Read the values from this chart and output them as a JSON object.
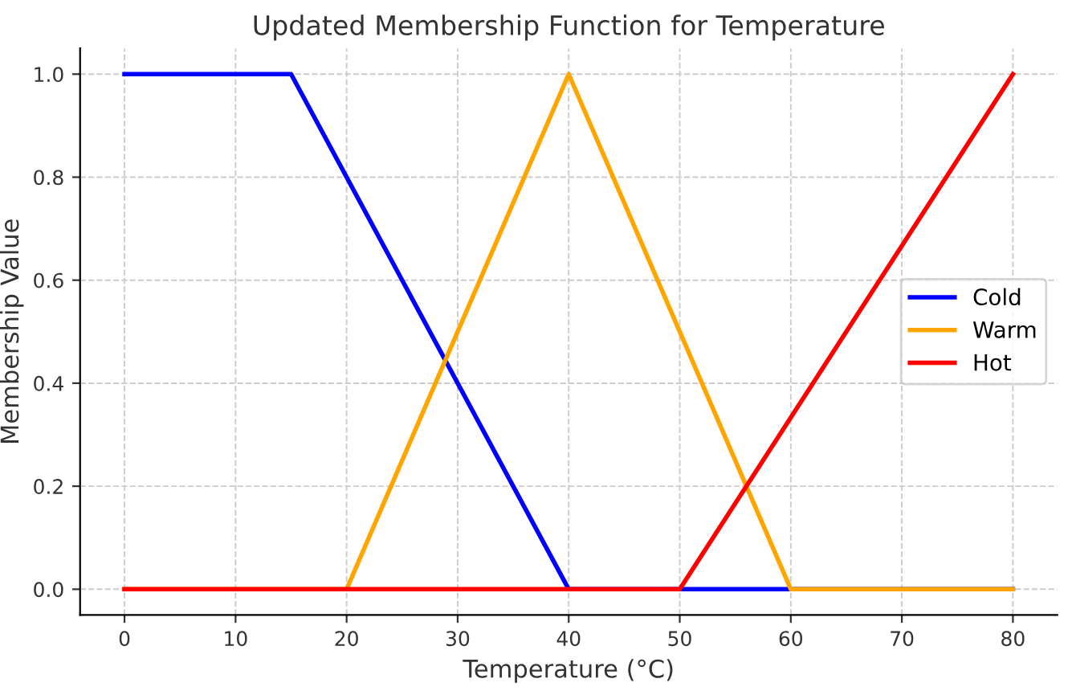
{
  "chart_data": {
    "type": "line",
    "title": "Updated Membership Function for Temperature",
    "xlabel": "Temperature (°C)",
    "ylabel": "Membership Value",
    "series": [
      {
        "name": "Cold",
        "color": "#0000ff",
        "x": [
          0,
          15,
          40,
          80
        ],
        "values": [
          1,
          1,
          0,
          0
        ]
      },
      {
        "name": "Warm",
        "color": "#ffa500",
        "x": [
          0,
          20,
          40,
          60,
          80
        ],
        "values": [
          0,
          0,
          1,
          0,
          0
        ]
      },
      {
        "name": "Hot",
        "color": "#ff0000",
        "x": [
          0,
          50,
          80
        ],
        "values": [
          0,
          0,
          1
        ]
      }
    ],
    "xlim": [
      -4,
      84
    ],
    "ylim": [
      -0.05,
      1.05
    ],
    "xticks": [
      0,
      10,
      20,
      30,
      40,
      50,
      60,
      70,
      80
    ],
    "yticks": [
      {
        "value": 0,
        "label": "0.0"
      },
      {
        "value": 0.2,
        "label": "0.2"
      },
      {
        "value": 0.4,
        "label": "0.4"
      },
      {
        "value": 0.6,
        "label": "0.6"
      },
      {
        "value": 0.8,
        "label": "0.8"
      },
      {
        "value": 1,
        "label": "1.0"
      }
    ],
    "grid": true,
    "legend": "right",
    "line_style": "solid",
    "marker": "none"
  }
}
